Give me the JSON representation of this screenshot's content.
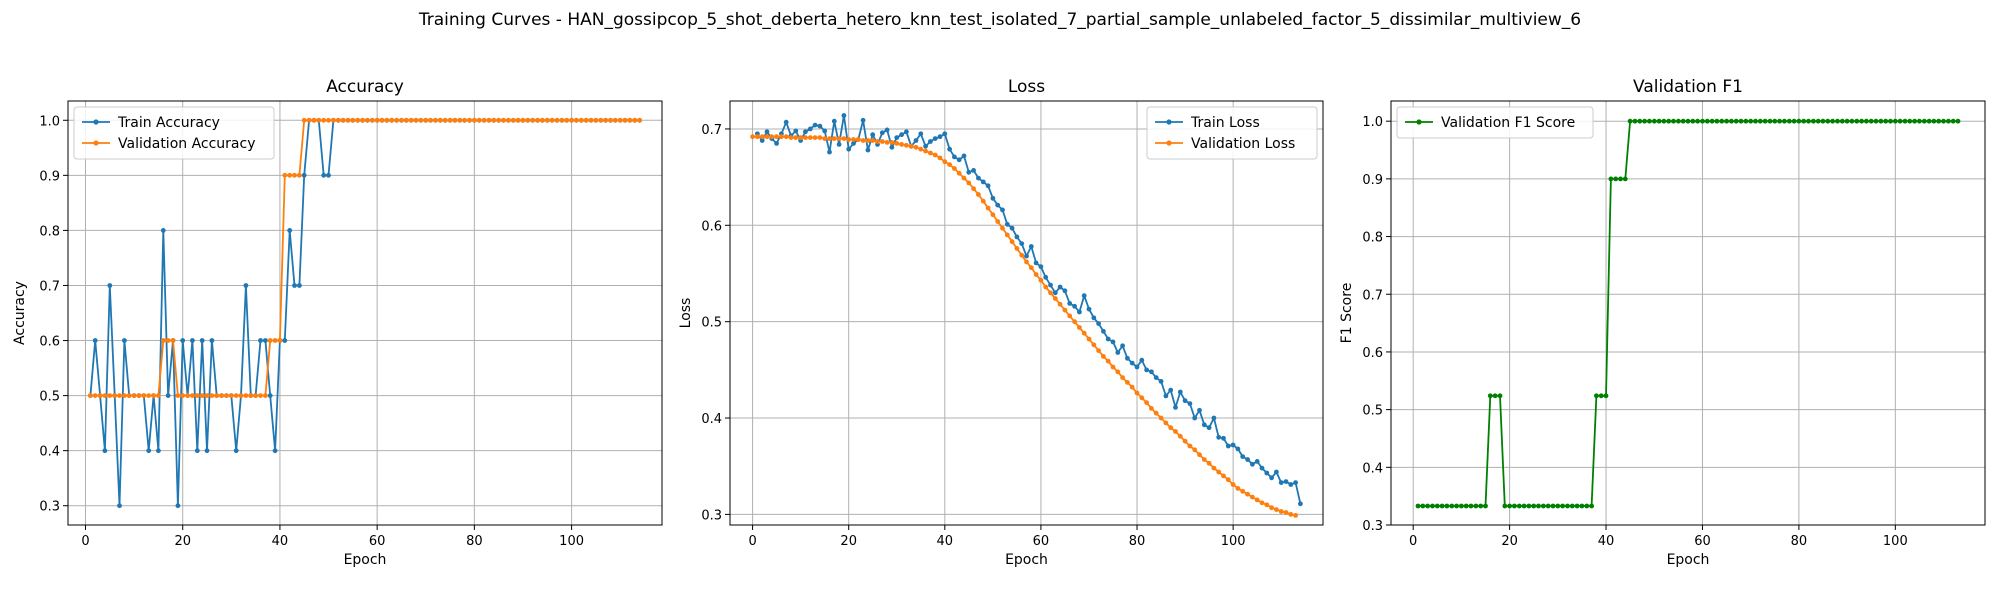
{
  "figure": {
    "suptitle": "Training Curves - HAN_gossipcop_5_shot_deberta_hetero_knn_test_isolated_7_partial_sample_unlabeled_factor_5_dissimilar_multiview_6"
  },
  "colors": {
    "blue": "#1f77b4",
    "orange": "#ff7f0e",
    "green": "#008000"
  },
  "chart_data": [
    {
      "type": "line",
      "title": "Accuracy",
      "xlabel": "Epoch",
      "ylabel": "Accuracy",
      "xlim": [
        -3.6,
        118.6
      ],
      "ylim": [
        0.265,
        1.035
      ],
      "xticks": [
        0,
        20,
        40,
        60,
        80,
        100
      ],
      "yticks": [
        0.3,
        0.4,
        0.5,
        0.6,
        0.7,
        0.8,
        0.9,
        1.0
      ],
      "ytick_labels": [
        "0.3",
        "0.4",
        "0.5",
        "0.6",
        "0.7",
        "0.8",
        "0.9",
        "1.0"
      ],
      "grid": true,
      "legend": "upper left",
      "series": [
        {
          "name": "Train Accuracy",
          "color": "#1f77b4",
          "x_start": 1,
          "values": [
            0.5,
            0.6,
            0.5,
            0.4,
            0.7,
            0.5,
            0.3,
            0.6,
            0.5,
            0.5,
            0.5,
            0.5,
            0.4,
            0.5,
            0.4,
            0.8,
            0.5,
            0.6,
            0.3,
            0.6,
            0.5,
            0.6,
            0.4,
            0.6,
            0.4,
            0.6,
            0.5,
            0.5,
            0.5,
            0.5,
            0.4,
            0.5,
            0.7,
            0.5,
            0.5,
            0.6,
            0.6,
            0.5,
            0.4,
            0.6,
            0.6,
            0.8,
            0.7,
            0.7,
            0.9,
            1.0,
            1.0,
            1.0,
            0.9,
            0.9,
            1.0,
            1.0,
            1.0,
            1.0,
            1.0,
            1.0,
            1.0,
            1.0,
            1.0,
            1.0,
            1.0,
            1.0,
            1.0,
            1.0,
            1.0,
            1.0,
            1.0,
            1.0,
            1.0,
            1.0,
            1.0,
            1.0,
            1.0,
            1.0,
            1.0,
            1.0,
            1.0,
            1.0,
            1.0,
            1.0,
            1.0,
            1.0,
            1.0,
            1.0,
            1.0,
            1.0,
            1.0,
            1.0,
            1.0,
            1.0,
            1.0,
            1.0,
            1.0,
            1.0,
            1.0,
            1.0,
            1.0,
            1.0,
            1.0,
            1.0,
            1.0,
            1.0,
            1.0,
            1.0,
            1.0,
            1.0,
            1.0,
            1.0,
            1.0,
            1.0,
            1.0,
            1.0,
            1.0,
            1.0
          ]
        },
        {
          "name": "Validation Accuracy",
          "color": "#ff7f0e",
          "x_start": 1,
          "values": [
            0.5,
            0.5,
            0.5,
            0.5,
            0.5,
            0.5,
            0.5,
            0.5,
            0.5,
            0.5,
            0.5,
            0.5,
            0.5,
            0.5,
            0.5,
            0.6,
            0.6,
            0.6,
            0.5,
            0.5,
            0.5,
            0.5,
            0.5,
            0.5,
            0.5,
            0.5,
            0.5,
            0.5,
            0.5,
            0.5,
            0.5,
            0.5,
            0.5,
            0.5,
            0.5,
            0.5,
            0.5,
            0.6,
            0.6,
            0.6,
            0.9,
            0.9,
            0.9,
            0.9,
            1.0,
            1.0,
            1.0,
            1.0,
            1.0,
            1.0,
            1.0,
            1.0,
            1.0,
            1.0,
            1.0,
            1.0,
            1.0,
            1.0,
            1.0,
            1.0,
            1.0,
            1.0,
            1.0,
            1.0,
            1.0,
            1.0,
            1.0,
            1.0,
            1.0,
            1.0,
            1.0,
            1.0,
            1.0,
            1.0,
            1.0,
            1.0,
            1.0,
            1.0,
            1.0,
            1.0,
            1.0,
            1.0,
            1.0,
            1.0,
            1.0,
            1.0,
            1.0,
            1.0,
            1.0,
            1.0,
            1.0,
            1.0,
            1.0,
            1.0,
            1.0,
            1.0,
            1.0,
            1.0,
            1.0,
            1.0,
            1.0,
            1.0,
            1.0,
            1.0,
            1.0,
            1.0,
            1.0,
            1.0,
            1.0,
            1.0,
            1.0,
            1.0,
            1.0,
            1.0
          ]
        }
      ]
    },
    {
      "type": "line",
      "title": "Loss",
      "xlabel": "Epoch",
      "ylabel": "Loss",
      "xlim": [
        -4.7,
        118.7
      ],
      "ylim": [
        0.289,
        0.729
      ],
      "xticks": [
        0,
        20,
        40,
        60,
        80,
        100
      ],
      "yticks": [
        0.3,
        0.4,
        0.5,
        0.6,
        0.7
      ],
      "ytick_labels": [
        "0.3",
        "0.4",
        "0.5",
        "0.6",
        "0.7"
      ],
      "grid": true,
      "legend": "upper right",
      "series": [
        {
          "name": "Train Loss",
          "color": "#1f77b4",
          "x_start": 1,
          "values": [
            0.695,
            0.688,
            0.697,
            0.69,
            0.685,
            0.695,
            0.707,
            0.693,
            0.698,
            0.688,
            0.697,
            0.7,
            0.704,
            0.703,
            0.698,
            0.676,
            0.708,
            0.684,
            0.714,
            0.679,
            0.685,
            0.689,
            0.709,
            0.678,
            0.694,
            0.684,
            0.696,
            0.699,
            0.681,
            0.691,
            0.694,
            0.697,
            0.682,
            0.688,
            0.695,
            0.682,
            0.687,
            0.69,
            0.692,
            0.695,
            0.679,
            0.671,
            0.668,
            0.672,
            0.655,
            0.657,
            0.649,
            0.645,
            0.641,
            0.628,
            0.621,
            0.616,
            0.601,
            0.597,
            0.588,
            0.581,
            0.568,
            0.578,
            0.561,
            0.557,
            0.546,
            0.538,
            0.53,
            0.536,
            0.532,
            0.519,
            0.516,
            0.51,
            0.527,
            0.513,
            0.504,
            0.498,
            0.49,
            0.482,
            0.479,
            0.468,
            0.475,
            0.462,
            0.457,
            0.453,
            0.46,
            0.45,
            0.448,
            0.442,
            0.438,
            0.423,
            0.429,
            0.411,
            0.427,
            0.418,
            0.415,
            0.4,
            0.408,
            0.393,
            0.39,
            0.4,
            0.38,
            0.379,
            0.371,
            0.372,
            0.368,
            0.36,
            0.357,
            0.352,
            0.355,
            0.348,
            0.343,
            0.338,
            0.344,
            0.333,
            0.334,
            0.331,
            0.333,
            0.311
          ]
        },
        {
          "name": "Validation Loss",
          "color": "#ff7f0e",
          "x_start": 0,
          "values": [
            0.692,
            0.692,
            0.692,
            0.692,
            0.692,
            0.692,
            0.692,
            0.692,
            0.691,
            0.691,
            0.691,
            0.691,
            0.691,
            0.691,
            0.691,
            0.69,
            0.69,
            0.69,
            0.69,
            0.69,
            0.689,
            0.689,
            0.689,
            0.688,
            0.688,
            0.688,
            0.687,
            0.687,
            0.686,
            0.686,
            0.685,
            0.684,
            0.683,
            0.682,
            0.681,
            0.679,
            0.677,
            0.675,
            0.673,
            0.67,
            0.666,
            0.663,
            0.659,
            0.654,
            0.649,
            0.644,
            0.638,
            0.632,
            0.625,
            0.618,
            0.611,
            0.604,
            0.597,
            0.59,
            0.583,
            0.576,
            0.569,
            0.562,
            0.556,
            0.549,
            0.543,
            0.536,
            0.53,
            0.524,
            0.518,
            0.512,
            0.506,
            0.5,
            0.494,
            0.488,
            0.482,
            0.476,
            0.47,
            0.464,
            0.459,
            0.453,
            0.448,
            0.442,
            0.437,
            0.432,
            0.426,
            0.421,
            0.416,
            0.41,
            0.405,
            0.4,
            0.395,
            0.39,
            0.386,
            0.381,
            0.376,
            0.371,
            0.367,
            0.362,
            0.357,
            0.353,
            0.348,
            0.344,
            0.34,
            0.336,
            0.331,
            0.327,
            0.324,
            0.321,
            0.318,
            0.315,
            0.312,
            0.31,
            0.307,
            0.305,
            0.303,
            0.302,
            0.3,
            0.299
          ]
        }
      ]
    },
    {
      "type": "line",
      "title": "Validation F1",
      "xlabel": "Epoch",
      "ylabel": "F1 Score",
      "xlim": [
        -4.6,
        118.6
      ],
      "ylim": [
        0.3,
        1.035
      ],
      "xticks": [
        0,
        20,
        40,
        60,
        80,
        100
      ],
      "yticks": [
        0.3,
        0.4,
        0.5,
        0.6,
        0.7,
        0.8,
        0.9,
        1.0
      ],
      "ytick_labels": [
        "0.3",
        "0.4",
        "0.5",
        "0.6",
        "0.7",
        "0.8",
        "0.9",
        "1.0"
      ],
      "grid": true,
      "legend": "upper left",
      "series": [
        {
          "name": "Validation F1 Score",
          "color": "#008000",
          "x_start": 1,
          "values": [
            0.333,
            0.333,
            0.333,
            0.333,
            0.333,
            0.333,
            0.333,
            0.333,
            0.333,
            0.333,
            0.333,
            0.333,
            0.333,
            0.333,
            0.333,
            0.524,
            0.524,
            0.524,
            0.333,
            0.333,
            0.333,
            0.333,
            0.333,
            0.333,
            0.333,
            0.333,
            0.333,
            0.333,
            0.333,
            0.333,
            0.333,
            0.333,
            0.333,
            0.333,
            0.333,
            0.333,
            0.333,
            0.524,
            0.524,
            0.524,
            0.9,
            0.9,
            0.9,
            0.9,
            1.0,
            1.0,
            1.0,
            1.0,
            1.0,
            1.0,
            1.0,
            1.0,
            1.0,
            1.0,
            1.0,
            1.0,
            1.0,
            1.0,
            1.0,
            1.0,
            1.0,
            1.0,
            1.0,
            1.0,
            1.0,
            1.0,
            1.0,
            1.0,
            1.0,
            1.0,
            1.0,
            1.0,
            1.0,
            1.0,
            1.0,
            1.0,
            1.0,
            1.0,
            1.0,
            1.0,
            1.0,
            1.0,
            1.0,
            1.0,
            1.0,
            1.0,
            1.0,
            1.0,
            1.0,
            1.0,
            1.0,
            1.0,
            1.0,
            1.0,
            1.0,
            1.0,
            1.0,
            1.0,
            1.0,
            1.0,
            1.0,
            1.0,
            1.0,
            1.0,
            1.0,
            1.0,
            1.0,
            1.0,
            1.0,
            1.0,
            1.0,
            1.0,
            1.0
          ]
        }
      ]
    }
  ]
}
